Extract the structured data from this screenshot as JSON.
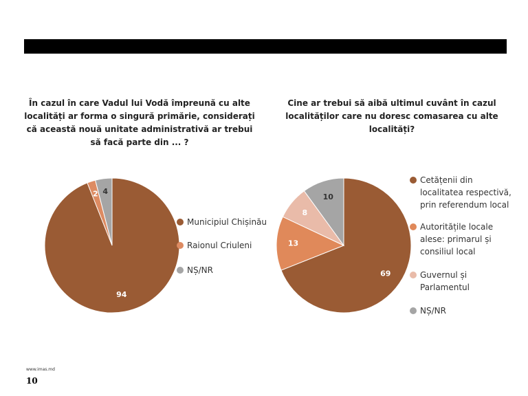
{
  "chart_data": [
    {
      "type": "pie",
      "title": "În cazul în care Vadul lui Vodă împreună cu alte localități ar forma o singură primărie, considerați că această nouă unitate administrativă ar trebui să facă parte din ... ?",
      "series": [
        {
          "name": "Municipiul Chișinău",
          "color": "#9a5b34",
          "values": [
            94
          ]
        },
        {
          "name": "Raionul Criuleni",
          "color": "#dd8b62",
          "values": [
            2
          ]
        },
        {
          "name": "NȘ/NR",
          "color": "#a5a5a5",
          "values": [
            4
          ]
        }
      ]
    },
    {
      "type": "pie",
      "title": "Cine ar trebui să aibă ultimul cuvânt în cazul localităților care nu doresc comasarea cu alte localități?",
      "series": [
        {
          "name": "Cetățenii din localitatea respectivă, prin referendum local",
          "color": "#9a5b34",
          "values": [
            69
          ]
        },
        {
          "name": "Autoritățile locale alese: primarul și consiliul local",
          "color": "#e0895a",
          "values": [
            13
          ]
        },
        {
          "name": "Guvernul și Parlamentul",
          "color": "#e9bba9",
          "values": [
            8
          ]
        },
        {
          "name": "NȘ/NR",
          "color": "#a5a5a5",
          "values": [
            10
          ]
        }
      ]
    }
  ],
  "footer": {
    "url": "www.imas.md",
    "page": "10"
  }
}
